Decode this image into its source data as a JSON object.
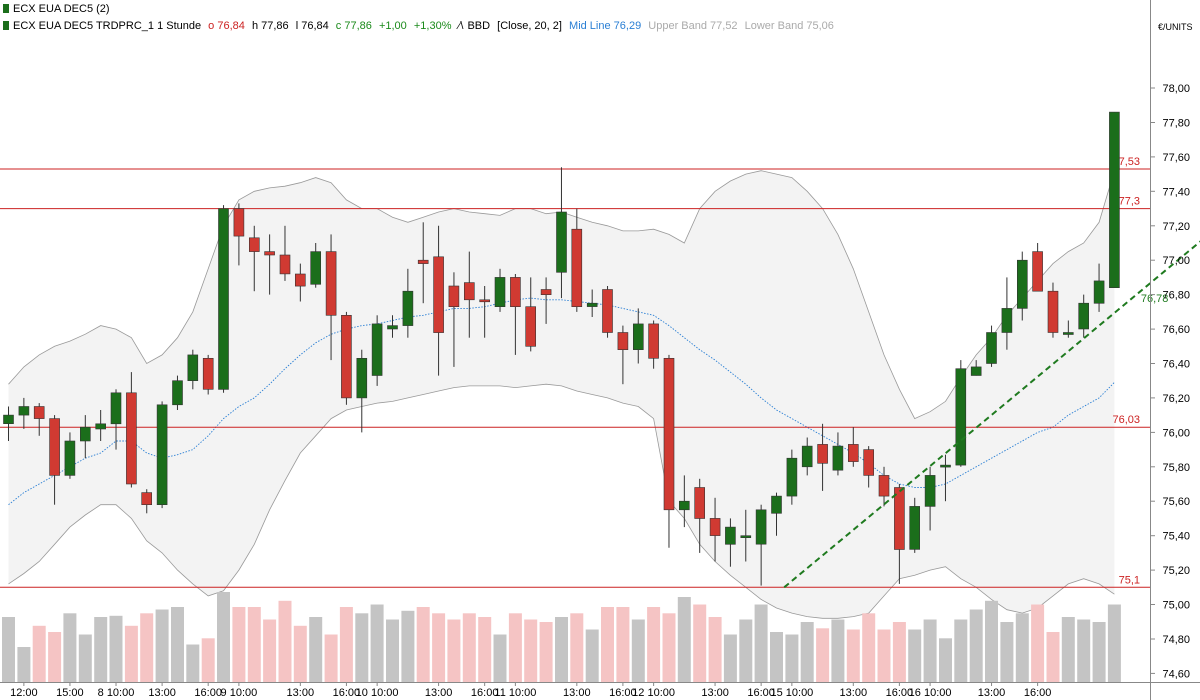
{
  "window_title": "ECX EUA DEC5 (2)",
  "legend": {
    "instrument": "ECX EUA DEC5 TRDPRC_1 1 Stunde",
    "open": "o 76,84",
    "high": "h 77,86",
    "low": "l 76,84",
    "close": "c 77,86",
    "change": "+1,00",
    "change_pct": "+1,30%",
    "indicator_icon": "bollinger-icon",
    "indicator_name": "BBD",
    "indicator_params": "[Close, 20, 2]",
    "mid_line": "Mid Line 76,29",
    "upper_band": "Upper Band 77,52",
    "lower_band": "Lower Band 75,06"
  },
  "colors": {
    "up": "#1b6e1b",
    "down": "#d03a32",
    "band_fill": "#f3f3f3",
    "band_line": "#999999",
    "mid_line": "#2a7fd4",
    "hline": "#cc2222",
    "trend": "#1f7a1f",
    "vol_up": "#c4c4c4",
    "vol_down": "#f5c4c4"
  },
  "chart_data": {
    "type": "candlestick",
    "y_unit": "€/UNITS",
    "ylim": [
      74.55,
      78.25
    ],
    "y_ticks": [
      "78,00",
      "77,80",
      "77,60",
      "77,40",
      "77,20",
      "77,00",
      "76,80",
      "76,60",
      "76,40",
      "76,20",
      "76,00",
      "75,80",
      "75,60",
      "75,40",
      "75,20",
      "75,00",
      "74,80",
      "74,60"
    ],
    "y_tick_values": [
      78.0,
      77.8,
      77.6,
      77.4,
      77.2,
      77.0,
      76.8,
      76.6,
      76.4,
      76.2,
      76.0,
      75.8,
      75.6,
      75.4,
      75.2,
      75.0,
      74.8,
      74.6
    ],
    "x_labels": [
      {
        "text": "12:00",
        "i": 1
      },
      {
        "text": "15:00",
        "i": 4
      },
      {
        "text": "8 10:00",
        "i": 7
      },
      {
        "text": "13:00",
        "i": 10
      },
      {
        "text": "16:00",
        "i": 13
      },
      {
        "text": "9 10:00",
        "i": 15
      },
      {
        "text": "13:00",
        "i": 19
      },
      {
        "text": "16:00",
        "i": 22
      },
      {
        "text": "10 10:00",
        "i": 24
      },
      {
        "text": "13:00",
        "i": 28
      },
      {
        "text": "16:00",
        "i": 31
      },
      {
        "text": "11 10:00",
        "i": 33
      },
      {
        "text": "13:00",
        "i": 37
      },
      {
        "text": "16:00",
        "i": 40
      },
      {
        "text": "12 10:00",
        "i": 42
      },
      {
        "text": "13:00",
        "i": 46
      },
      {
        "text": "16:00",
        "i": 49
      },
      {
        "text": "15 10:00",
        "i": 51
      },
      {
        "text": "13:00",
        "i": 55
      },
      {
        "text": "16:00",
        "i": 58
      },
      {
        "text": "16 10:00",
        "i": 60
      },
      {
        "text": "13:00",
        "i": 64
      },
      {
        "text": "16:00",
        "i": 67
      }
    ],
    "candles": [
      [
        76.05,
        76.1,
        76.15,
        75.95
      ],
      [
        76.1,
        76.15,
        76.2,
        76.02
      ],
      [
        76.15,
        76.08,
        76.17,
        75.98
      ],
      [
        76.08,
        75.75,
        76.1,
        75.58
      ],
      [
        75.75,
        75.95,
        76.0,
        75.73
      ],
      [
        75.95,
        76.03,
        76.1,
        75.85
      ],
      [
        76.02,
        76.05,
        76.13,
        75.95
      ],
      [
        76.05,
        76.23,
        76.25,
        75.9
      ],
      [
        76.23,
        75.7,
        76.35,
        75.68
      ],
      [
        75.65,
        75.58,
        75.67,
        75.53
      ],
      [
        75.58,
        76.16,
        76.18,
        75.56
      ],
      [
        76.16,
        76.3,
        76.33,
        76.13
      ],
      [
        76.3,
        76.45,
        76.48,
        76.25
      ],
      [
        76.43,
        76.25,
        76.45,
        76.22
      ],
      [
        76.25,
        77.3,
        77.32,
        76.23
      ],
      [
        77.3,
        77.14,
        77.33,
        76.97
      ],
      [
        77.13,
        77.05,
        77.2,
        76.82
      ],
      [
        77.05,
        77.03,
        77.15,
        76.8
      ],
      [
        77.03,
        76.92,
        77.2,
        76.88
      ],
      [
        76.92,
        76.85,
        76.98,
        76.76
      ],
      [
        76.86,
        77.05,
        77.1,
        76.84
      ],
      [
        77.05,
        76.68,
        77.15,
        76.42
      ],
      [
        76.68,
        76.2,
        76.7,
        76.16
      ],
      [
        76.2,
        76.43,
        76.48,
        76.0
      ],
      [
        76.33,
        76.63,
        76.68,
        76.27
      ],
      [
        76.6,
        76.62,
        76.68,
        76.55
      ],
      [
        76.62,
        76.82,
        76.95,
        76.55
      ],
      [
        77.0,
        76.98,
        77.22,
        76.75
      ],
      [
        77.02,
        76.58,
        77.2,
        76.33
      ],
      [
        76.85,
        76.73,
        76.93,
        76.38
      ],
      [
        76.87,
        76.77,
        77.05,
        76.55
      ],
      [
        76.77,
        76.76,
        76.85,
        76.55
      ],
      [
        76.73,
        76.9,
        76.95,
        76.7
      ],
      [
        76.9,
        76.73,
        76.92,
        76.45
      ],
      [
        76.73,
        76.5,
        76.9,
        76.47
      ],
      [
        76.83,
        76.8,
        76.9,
        76.63
      ],
      [
        76.93,
        77.28,
        77.54,
        76.78
      ],
      [
        77.18,
        76.73,
        77.3,
        76.7
      ],
      [
        76.73,
        76.75,
        76.83,
        76.67
      ],
      [
        76.83,
        76.58,
        76.85,
        76.55
      ],
      [
        76.58,
        76.48,
        76.62,
        76.28
      ],
      [
        76.48,
        76.63,
        76.72,
        76.4
      ],
      [
        76.63,
        76.43,
        76.65,
        76.37
      ],
      [
        76.43,
        75.55,
        76.45,
        75.33
      ],
      [
        75.55,
        75.6,
        75.75,
        75.45
      ],
      [
        75.68,
        75.5,
        75.73,
        75.3
      ],
      [
        75.5,
        75.4,
        75.62,
        75.25
      ],
      [
        75.35,
        75.45,
        75.5,
        75.22
      ],
      [
        75.4,
        75.4,
        75.55,
        75.25
      ],
      [
        75.35,
        75.55,
        75.58,
        75.11
      ],
      [
        75.53,
        75.63,
        75.65,
        75.4
      ],
      [
        75.63,
        75.85,
        75.9,
        75.58
      ],
      [
        75.8,
        75.92,
        75.97,
        75.75
      ],
      [
        75.93,
        75.82,
        76.05,
        75.66
      ],
      [
        75.78,
        75.92,
        76.0,
        75.75
      ],
      [
        75.93,
        75.83,
        76.03,
        75.8
      ],
      [
        75.9,
        75.75,
        75.92,
        75.68
      ],
      [
        75.75,
        75.63,
        75.8,
        75.57
      ],
      [
        75.68,
        75.32,
        75.7,
        75.12
      ],
      [
        75.32,
        75.57,
        75.62,
        75.3
      ],
      [
        75.57,
        75.75,
        75.8,
        75.43
      ],
      [
        75.8,
        75.81,
        75.87,
        75.6
      ],
      [
        75.81,
        76.37,
        76.42,
        75.8
      ],
      [
        76.33,
        76.38,
        76.42,
        76.33
      ],
      [
        76.4,
        76.58,
        76.62,
        76.38
      ],
      [
        76.58,
        76.72,
        76.9,
        76.48
      ],
      [
        76.72,
        77.0,
        77.05,
        76.65
      ],
      [
        77.05,
        76.82,
        77.1,
        76.82
      ],
      [
        76.82,
        76.58,
        76.87,
        76.55
      ],
      [
        76.58,
        76.58,
        76.65,
        76.55
      ],
      [
        76.6,
        76.75,
        76.8,
        76.55
      ],
      [
        76.75,
        76.88,
        76.98,
        76.7
      ],
      [
        76.84,
        77.86,
        77.86,
        76.84
      ]
    ],
    "volume": [
      52,
      28,
      45,
      40,
      55,
      38,
      52,
      53,
      45,
      55,
      58,
      60,
      30,
      35,
      72,
      60,
      60,
      50,
      65,
      45,
      52,
      38,
      60,
      55,
      62,
      50,
      57,
      60,
      55,
      50,
      55,
      52,
      38,
      55,
      50,
      48,
      52,
      55,
      42,
      60,
      60,
      50,
      60,
      55,
      68,
      62,
      52,
      38,
      50,
      62,
      40,
      38,
      48,
      43,
      50,
      42,
      55,
      42,
      48,
      42,
      50,
      35,
      50,
      58,
      65,
      48,
      55,
      62,
      40,
      52,
      50,
      48,
      62
    ],
    "bands": {
      "upper": [
        76.28,
        76.38,
        76.45,
        76.5,
        76.53,
        76.57,
        76.62,
        76.6,
        76.55,
        76.4,
        76.45,
        76.55,
        76.7,
        76.95,
        77.2,
        77.35,
        77.4,
        77.42,
        77.43,
        77.45,
        77.48,
        77.45,
        77.35,
        77.3,
        77.3,
        77.25,
        77.22,
        77.25,
        77.28,
        77.3,
        77.28,
        77.27,
        77.26,
        77.3,
        77.3,
        77.27,
        77.28,
        77.25,
        77.22,
        77.2,
        77.17,
        77.17,
        77.18,
        77.15,
        77.1,
        77.3,
        77.4,
        77.46,
        77.5,
        77.52,
        77.5,
        77.48,
        77.4,
        77.3,
        77.15,
        76.95,
        76.7,
        76.45,
        76.25,
        76.08,
        76.12,
        76.18,
        76.32,
        76.45,
        76.55,
        76.68,
        76.78,
        76.88,
        76.98,
        77.05,
        77.1,
        77.22,
        77.52
      ],
      "lower": [
        75.12,
        75.18,
        75.25,
        75.35,
        75.45,
        75.52,
        75.58,
        75.58,
        75.5,
        75.37,
        75.3,
        75.2,
        75.12,
        75.05,
        75.08,
        75.2,
        75.35,
        75.55,
        75.72,
        75.88,
        75.98,
        76.08,
        76.13,
        76.15,
        76.17,
        76.18,
        76.2,
        76.22,
        76.24,
        76.26,
        76.27,
        76.27,
        76.27,
        76.26,
        76.27,
        76.28,
        76.27,
        76.24,
        76.22,
        76.2,
        76.17,
        76.15,
        76.08,
        75.6,
        75.5,
        75.35,
        75.25,
        75.17,
        75.1,
        75.03,
        74.98,
        74.95,
        74.93,
        74.92,
        74.92,
        74.93,
        74.95,
        75.05,
        75.15,
        75.17,
        75.2,
        75.22,
        75.15,
        75.1,
        75.03,
        74.97,
        74.95,
        74.98,
        75.05,
        75.12,
        75.15,
        75.12,
        75.06
      ],
      "mid": [
        75.58,
        75.65,
        75.7,
        75.75,
        75.8,
        75.85,
        75.88,
        75.95,
        75.95,
        75.88,
        75.85,
        75.87,
        75.9,
        75.98,
        76.08,
        76.15,
        76.2,
        76.28,
        76.37,
        76.45,
        76.52,
        76.57,
        76.6,
        76.62,
        76.63,
        76.65,
        76.67,
        76.68,
        76.7,
        76.72,
        76.72,
        76.73,
        76.75,
        76.77,
        76.78,
        76.77,
        76.77,
        76.76,
        76.75,
        76.74,
        76.72,
        76.7,
        76.68,
        76.62,
        76.55,
        76.48,
        76.42,
        76.35,
        76.28,
        76.2,
        76.13,
        76.08,
        76.03,
        75.98,
        75.93,
        75.88,
        75.82,
        75.75,
        75.7,
        75.68,
        75.68,
        75.7,
        75.75,
        75.8,
        75.85,
        75.9,
        75.95,
        76.0,
        76.03,
        76.1,
        76.15,
        76.2,
        76.29
      ]
    },
    "mid_last_index": 72,
    "lower_last_index": 72,
    "upper_last_index": 72,
    "horizontal_lines": [
      {
        "value": 77.53,
        "label": "77,53"
      },
      {
        "value": 77.3,
        "label": "77,3"
      },
      {
        "value": 76.03,
        "label": "76,03"
      },
      {
        "value": 75.1,
        "label": "75,1"
      }
    ],
    "trend_line": {
      "from": {
        "i": 50.5,
        "y": 75.1
      },
      "to": {
        "i": 79.5,
        "y": 77.25
      },
      "label": "76,78",
      "label_at": {
        "i": 73.2,
        "y": 76.78
      }
    }
  }
}
